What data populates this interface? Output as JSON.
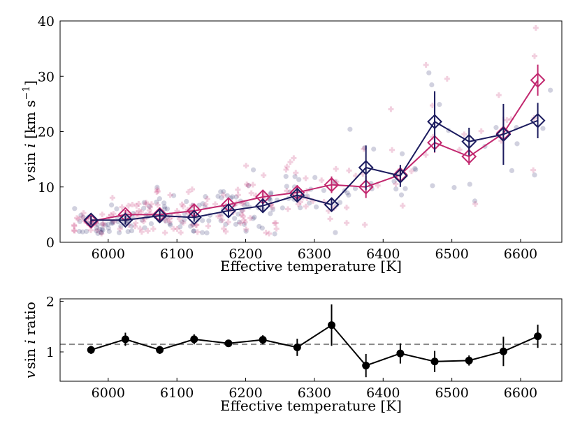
{
  "chart_data": [
    {
      "type": "scatter",
      "panel": "top",
      "xlabel": "Effective temperature [K]",
      "ylabel": "v sin i [km s⁻¹]",
      "ylabel_parts": {
        "v": "v",
        "sin": "sin ",
        "i": "i",
        "units": " [km s",
        "exp": "−1",
        "close": "]"
      },
      "xlim": [
        5930,
        6660
      ],
      "ylim": [
        0,
        40
      ],
      "xticks": [
        6000,
        6100,
        6200,
        6300,
        6400,
        6500,
        6600
      ],
      "yticks": [
        0,
        10,
        20,
        30,
        40
      ],
      "colors": {
        "navy": "#1b1b5e",
        "magenta": "#c2286f"
      },
      "series": [
        {
          "name": "navy binned",
          "color": "#1b1b5e",
          "marker": "diamond",
          "x": [
            5975,
            6025,
            6075,
            6125,
            6175,
            6225,
            6275,
            6325,
            6375,
            6425,
            6475,
            6525,
            6575,
            6625
          ],
          "y": [
            4.0,
            4.0,
            4.8,
            4.5,
            5.7,
            6.6,
            8.5,
            6.8,
            13.5,
            12.0,
            21.8,
            18.2,
            19.5,
            22.0
          ],
          "err": [
            0.8,
            0.8,
            0.9,
            0.8,
            1.0,
            1.0,
            1.2,
            1.2,
            4.0,
            2.0,
            5.5,
            2.5,
            5.5,
            3.2
          ]
        },
        {
          "name": "magenta binned",
          "color": "#c2286f",
          "marker": "diamond",
          "x": [
            5975,
            6025,
            6075,
            6125,
            6175,
            6225,
            6275,
            6325,
            6375,
            6425,
            6475,
            6525,
            6575,
            6625
          ],
          "y": [
            3.8,
            5.0,
            5.0,
            5.7,
            6.8,
            8.2,
            9.0,
            10.4,
            10.0,
            12.2,
            18.0,
            15.5,
            19.7,
            29.3
          ],
          "err": [
            0.7,
            0.8,
            0.9,
            1.0,
            1.1,
            1.2,
            1.3,
            1.5,
            2.0,
            1.5,
            1.8,
            1.5,
            3.0,
            2.8
          ]
        }
      ]
    },
    {
      "type": "line",
      "panel": "bottom",
      "xlabel": "Effective temperature [K]",
      "ylabel": "v sin i ratio",
      "ylabel_parts": {
        "v": "v",
        "sin": "sin ",
        "i": "i",
        "rest": " ratio"
      },
      "xlim": [
        5930,
        6660
      ],
      "ylim": [
        0.42,
        2.05
      ],
      "xticks": [
        6000,
        6100,
        6200,
        6300,
        6400,
        6500,
        6600
      ],
      "yticks": [
        1,
        2
      ],
      "reference_line": 1.15,
      "series": [
        {
          "name": "ratio",
          "color": "#000000",
          "x": [
            5975,
            6025,
            6075,
            6125,
            6175,
            6225,
            6275,
            6325,
            6375,
            6425,
            6475,
            6525,
            6575,
            6625
          ],
          "y": [
            1.04,
            1.25,
            1.04,
            1.25,
            1.17,
            1.24,
            1.09,
            1.53,
            0.73,
            0.97,
            0.81,
            0.83,
            1.01,
            1.31
          ],
          "err": [
            0.08,
            0.13,
            0.08,
            0.1,
            0.06,
            0.09,
            0.17,
            0.41,
            0.23,
            0.2,
            0.21,
            0.1,
            0.29,
            0.23
          ]
        }
      ]
    }
  ]
}
